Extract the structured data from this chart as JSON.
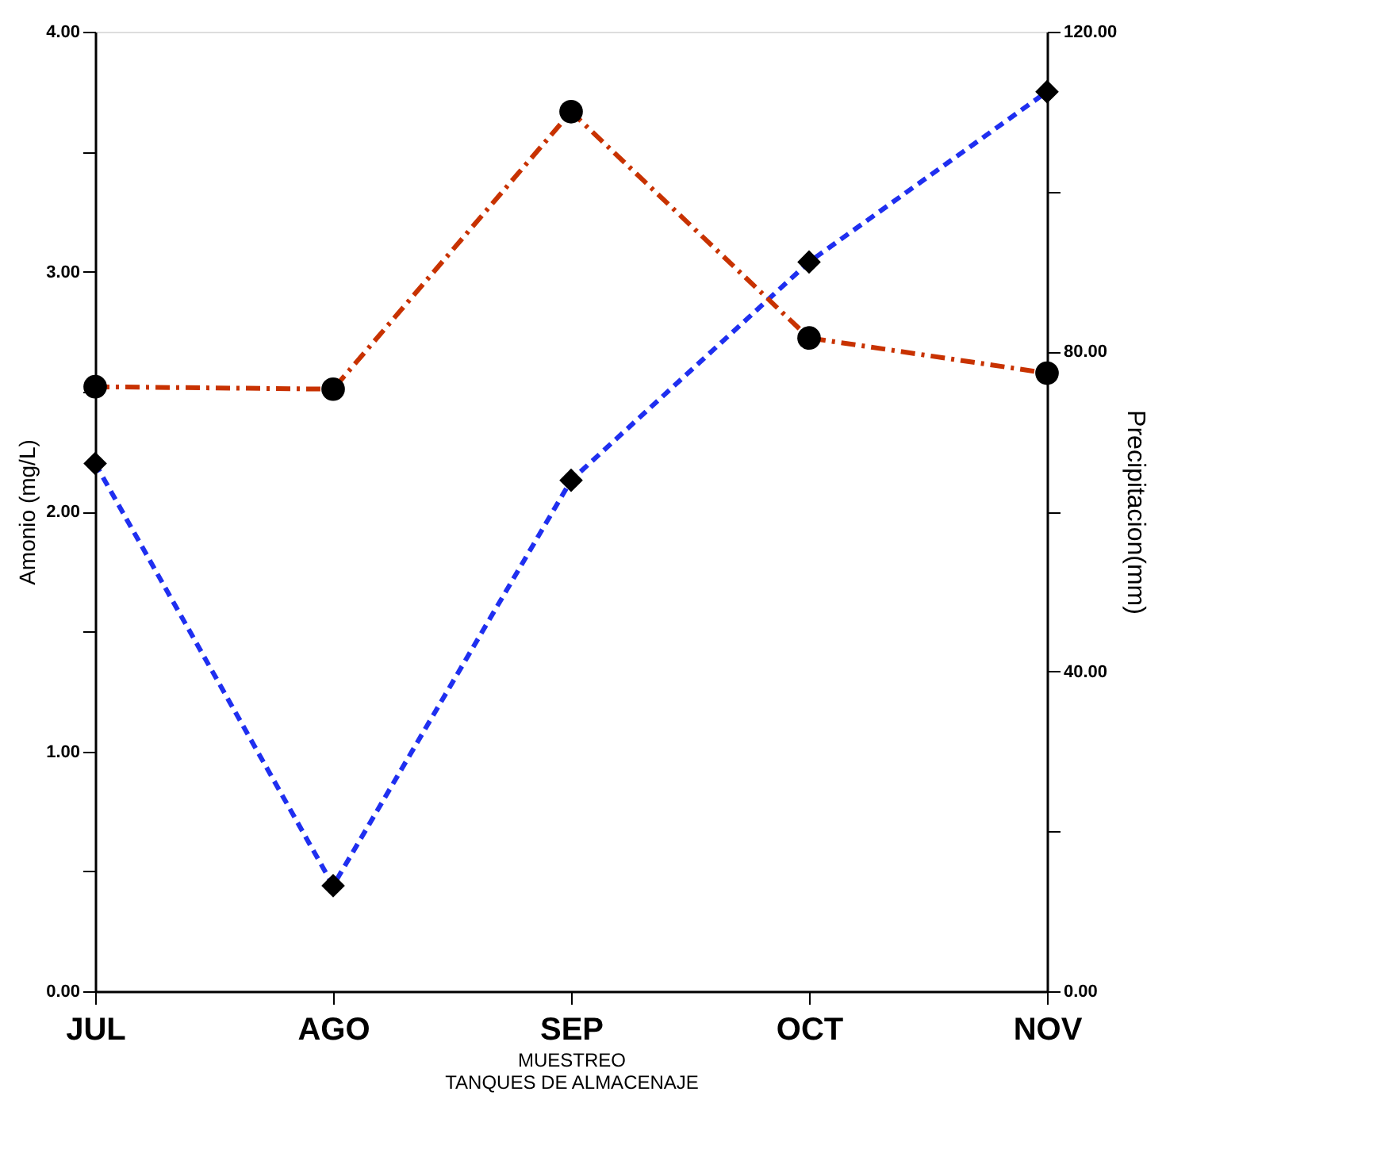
{
  "chart_data": {
    "type": "line",
    "xlabel": "MUESTREO\nTANQUES DE ALMACENAJE",
    "ylabel": "Amonio (mg/L)",
    "y2label": "Precipitacion(mm)",
    "categories": [
      "JUL",
      "AGO",
      "SEP",
      "OCT",
      "NOV"
    ],
    "series": [
      {
        "color": "#1f2ff0",
        "values": [
          2.2,
          0.44,
          2.13,
          3.04,
          3.75
        ],
        "marker": "diamond",
        "line_style": "dashed"
      },
      {
        "color": "#c83200",
        "values": [
          75.6,
          75.3,
          110,
          81.7,
          77.3
        ],
        "marker": "circle",
        "line_style": "dashdot",
        "axis": "y2"
      }
    ],
    "ylim": [
      0,
      4
    ],
    "yticks": [
      {
        "value": 0,
        "label": "0.00"
      },
      {
        "value": 0.5,
        "label": null
      },
      {
        "value": 1,
        "label": "1.00"
      },
      {
        "value": 1.5,
        "label": null
      },
      {
        "value": 2,
        "label": "2.00"
      },
      {
        "value": 2.5,
        "label": null
      },
      {
        "value": 3,
        "label": "3.00"
      },
      {
        "value": 3.5,
        "label": null
      },
      {
        "value": 4,
        "label": "4.00"
      }
    ],
    "y2lim": [
      0,
      120
    ],
    "y2ticks": [
      {
        "value": 0,
        "label": "0.00"
      },
      {
        "value": 20,
        "label": null
      },
      {
        "value": 40,
        "label": "40.00"
      },
      {
        "value": 60,
        "label": null
      },
      {
        "value": 80,
        "label": "80.00"
      },
      {
        "value": 100,
        "label": null
      },
      {
        "value": 120,
        "label": "120.00"
      }
    ],
    "grid": false
  }
}
